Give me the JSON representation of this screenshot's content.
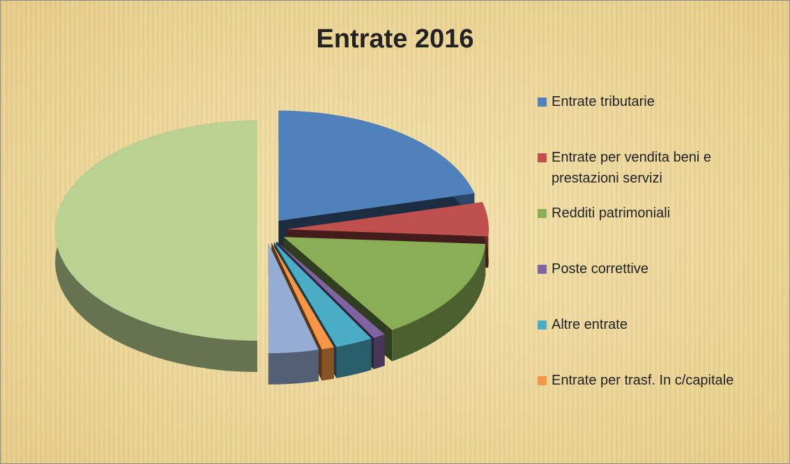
{
  "chart_data": {
    "type": "pie",
    "title": "Entrate 2016",
    "categories": [
      "Entrate tributarie",
      "Entrate per vendita beni e prestazioni servizi",
      "Redditi patrimoniali",
      "Poste correttive",
      "Altre entrate",
      "Entrate per trasf. In c/capitale",
      null,
      null
    ],
    "values": [
      21,
      5,
      15,
      1,
      3,
      1,
      4,
      50
    ],
    "colors": [
      "#4f81bd",
      "#c0504d",
      "#8aae55",
      "#8064a2",
      "#4bacc6",
      "#f79646",
      "#95add4",
      "#b9d192"
    ],
    "legend": "right"
  }
}
